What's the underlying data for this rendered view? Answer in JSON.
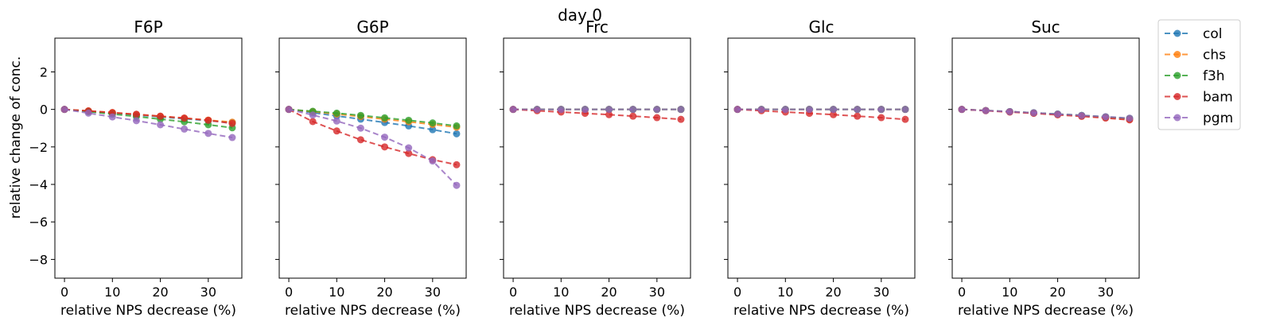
{
  "suptitle": "day 0",
  "chart_data": {
    "type": "line",
    "ylabel": "relative change of conc.",
    "xlabel": "relative NPS decrease (%)",
    "x": [
      0,
      5,
      10,
      15,
      20,
      25,
      30,
      35
    ],
    "xticks": [
      0,
      10,
      20,
      30
    ],
    "yticks": [
      -8,
      -6,
      -4,
      -2,
      0,
      2
    ],
    "xlim": [
      -2,
      37
    ],
    "ylim": [
      -9,
      3.8
    ],
    "legend_position": "upper right, outside plots",
    "series_meta": [
      {
        "name": "col",
        "color": "#1f77b4"
      },
      {
        "name": "chs",
        "color": "#ff7f0e"
      },
      {
        "name": "f3h",
        "color": "#2ca02c"
      },
      {
        "name": "bam",
        "color": "#d62728"
      },
      {
        "name": "pgm",
        "color": "#9467bd"
      }
    ],
    "panels": [
      {
        "title": "F6P",
        "series": [
          {
            "name": "col",
            "values": [
              0,
              -0.1,
              -0.2,
              -0.3,
              -0.4,
              -0.5,
              -0.6,
              -0.7
            ]
          },
          {
            "name": "chs",
            "values": [
              0,
              -0.08,
              -0.17,
              -0.27,
              -0.37,
              -0.47,
              -0.57,
              -0.68
            ]
          },
          {
            "name": "f3h",
            "values": [
              0,
              -0.12,
              -0.25,
              -0.38,
              -0.52,
              -0.66,
              -0.82,
              -0.98
            ]
          },
          {
            "name": "bam",
            "values": [
              0,
              -0.08,
              -0.17,
              -0.26,
              -0.36,
              -0.46,
              -0.58,
              -0.75
            ]
          },
          {
            "name": "pgm",
            "values": [
              0,
              -0.2,
              -0.4,
              -0.6,
              -0.82,
              -1.05,
              -1.28,
              -1.5
            ]
          }
        ]
      },
      {
        "title": "G6P",
        "series": [
          {
            "name": "col",
            "values": [
              0,
              -0.18,
              -0.35,
              -0.52,
              -0.7,
              -0.88,
              -1.08,
              -1.3
            ]
          },
          {
            "name": "chs",
            "values": [
              0,
              -0.12,
              -0.25,
              -0.38,
              -0.52,
              -0.66,
              -0.8,
              -0.95
            ]
          },
          {
            "name": "f3h",
            "values": [
              0,
              -0.1,
              -0.2,
              -0.32,
              -0.45,
              -0.58,
              -0.72,
              -0.88
            ]
          },
          {
            "name": "bam",
            "values": [
              0,
              -0.65,
              -1.15,
              -1.62,
              -2.0,
              -2.35,
              -2.68,
              -2.95
            ]
          },
          {
            "name": "pgm",
            "values": [
              0,
              -0.3,
              -0.62,
              -1.0,
              -1.48,
              -2.05,
              -2.75,
              -4.05
            ]
          }
        ]
      },
      {
        "title": "Frc",
        "series": [
          {
            "name": "col",
            "values": [
              0,
              0,
              0,
              0,
              0,
              0,
              0,
              0
            ]
          },
          {
            "name": "chs",
            "values": [
              0,
              0,
              0,
              0,
              0,
              0,
              0,
              0
            ]
          },
          {
            "name": "f3h",
            "values": [
              0,
              0,
              0,
              0,
              0,
              0,
              0,
              0
            ]
          },
          {
            "name": "bam",
            "values": [
              0,
              -0.07,
              -0.14,
              -0.21,
              -0.28,
              -0.36,
              -0.44,
              -0.53
            ]
          },
          {
            "name": "pgm",
            "values": [
              0,
              0,
              0,
              0,
              0,
              0,
              0,
              0
            ]
          }
        ]
      },
      {
        "title": "Glc",
        "series": [
          {
            "name": "col",
            "values": [
              0,
              0,
              0,
              0,
              0,
              0,
              0,
              0
            ]
          },
          {
            "name": "chs",
            "values": [
              0,
              0,
              0,
              0,
              0,
              0,
              0,
              0
            ]
          },
          {
            "name": "f3h",
            "values": [
              0,
              0,
              0,
              0,
              0,
              0,
              0,
              0
            ]
          },
          {
            "name": "bam",
            "values": [
              0,
              -0.07,
              -0.14,
              -0.21,
              -0.28,
              -0.36,
              -0.44,
              -0.53
            ]
          },
          {
            "name": "pgm",
            "values": [
              0,
              0,
              0,
              0,
              0,
              0,
              0,
              0
            ]
          }
        ]
      },
      {
        "title": "Suc",
        "series": [
          {
            "name": "col",
            "values": [
              0,
              -0.06,
              -0.12,
              -0.18,
              -0.25,
              -0.32,
              -0.4,
              -0.48
            ]
          },
          {
            "name": "chs",
            "values": [
              0,
              -0.06,
              -0.13,
              -0.2,
              -0.27,
              -0.35,
              -0.43,
              -0.52
            ]
          },
          {
            "name": "f3h",
            "values": [
              0,
              -0.06,
              -0.12,
              -0.18,
              -0.25,
              -0.32,
              -0.4,
              -0.48
            ]
          },
          {
            "name": "bam",
            "values": [
              0,
              -0.07,
              -0.14,
              -0.21,
              -0.29,
              -0.37,
              -0.46,
              -0.56
            ]
          },
          {
            "name": "pgm",
            "values": [
              0,
              -0.06,
              -0.12,
              -0.18,
              -0.25,
              -0.32,
              -0.39,
              -0.47
            ]
          }
        ]
      }
    ]
  }
}
